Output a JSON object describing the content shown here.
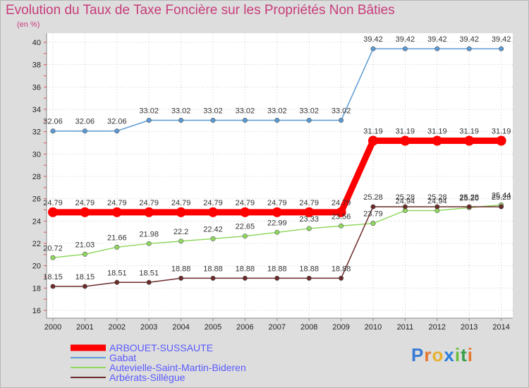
{
  "header": {
    "title": "Evolution du Taux de Taxe Foncière sur les Propriétés Non Bâties",
    "unit": "(en %)"
  },
  "logo": {
    "text": "Proxiti",
    "letters": [
      "P",
      "r",
      "o",
      "x",
      "i",
      "t",
      "i"
    ],
    "colors": [
      "#3a7bd5",
      "#e8762d",
      "#e8b12d",
      "#2a7de0",
      "#6cbf3a",
      "#3a9e4a",
      "#e8762d"
    ]
  },
  "chart_data": {
    "type": "line",
    "title": "Evolution du Taux de Taxe Foncière sur les Propriétés Non Bâties",
    "ylabel": "(en %)",
    "ylim": [
      16,
      40
    ],
    "yticks": [
      "16",
      "18",
      "20",
      "22",
      "24",
      "26",
      "28",
      "30",
      "32",
      "34",
      "36",
      "38",
      "40"
    ],
    "x": [
      "2000",
      "2001",
      "2002",
      "2003",
      "2004",
      "2005",
      "2006",
      "2007",
      "2008",
      "2009",
      "2010",
      "2011",
      "2012",
      "2013",
      "2014"
    ],
    "series": [
      {
        "name": "ARBOUET-SUSSAUTE",
        "color": "#ff0000",
        "bold": true,
        "values": [
          24.79,
          24.79,
          24.79,
          24.79,
          24.79,
          24.79,
          24.79,
          24.79,
          24.79,
          24.79,
          31.19,
          31.19,
          31.19,
          31.19,
          31.19
        ],
        "labels": [
          "24.79",
          "24.79",
          "24.79",
          "24.79",
          "24.79",
          "24.79",
          "24.79",
          "24.79",
          "24.79",
          "24.79",
          "31.19",
          "31.19",
          "31.19",
          "31.19",
          "31.19"
        ]
      },
      {
        "name": "Gabat",
        "color": "#5b9bd5",
        "values": [
          32.06,
          32.06,
          32.06,
          33.02,
          33.02,
          33.02,
          33.02,
          33.02,
          33.02,
          33.02,
          39.42,
          39.42,
          39.42,
          39.42,
          39.42
        ],
        "labels": [
          "32.06",
          "32.06",
          "32.06",
          "33.02",
          "33.02",
          "33.02",
          "33.02",
          "33.02",
          "33.02",
          "33.02",
          "39.42",
          "39.42",
          "39.42",
          "39.42",
          "39.42"
        ]
      },
      {
        "name": "Autevielle-Saint-Martin-Bideren",
        "color": "#90d860",
        "values": [
          20.72,
          21.03,
          21.66,
          21.98,
          22.2,
          22.42,
          22.65,
          22.99,
          23.33,
          23.56,
          23.79,
          24.94,
          24.94,
          25.2,
          25.44
        ],
        "labels": [
          "20.72",
          "21.03",
          "21.66",
          "21.98",
          "22.2",
          "22.42",
          "22.65",
          "22.99",
          "23.33",
          "23.56",
          "23.79",
          "24.94",
          "24.94",
          "25.20",
          "25.44"
        ]
      },
      {
        "name": "Arbérats-Sillègue",
        "color": "#6b2a2a",
        "values": [
          18.15,
          18.15,
          18.51,
          18.51,
          18.88,
          18.88,
          18.88,
          18.88,
          18.88,
          18.88,
          25.28,
          25.28,
          25.28,
          25.28,
          25.28
        ],
        "labels": [
          "18.15",
          "18.15",
          "18.51",
          "18.51",
          "18.88",
          "18.88",
          "18.88",
          "18.88",
          "18.88",
          "18.88",
          "25.28",
          "25.28",
          "25.28",
          "25.28",
          "25.28"
        ]
      }
    ]
  }
}
